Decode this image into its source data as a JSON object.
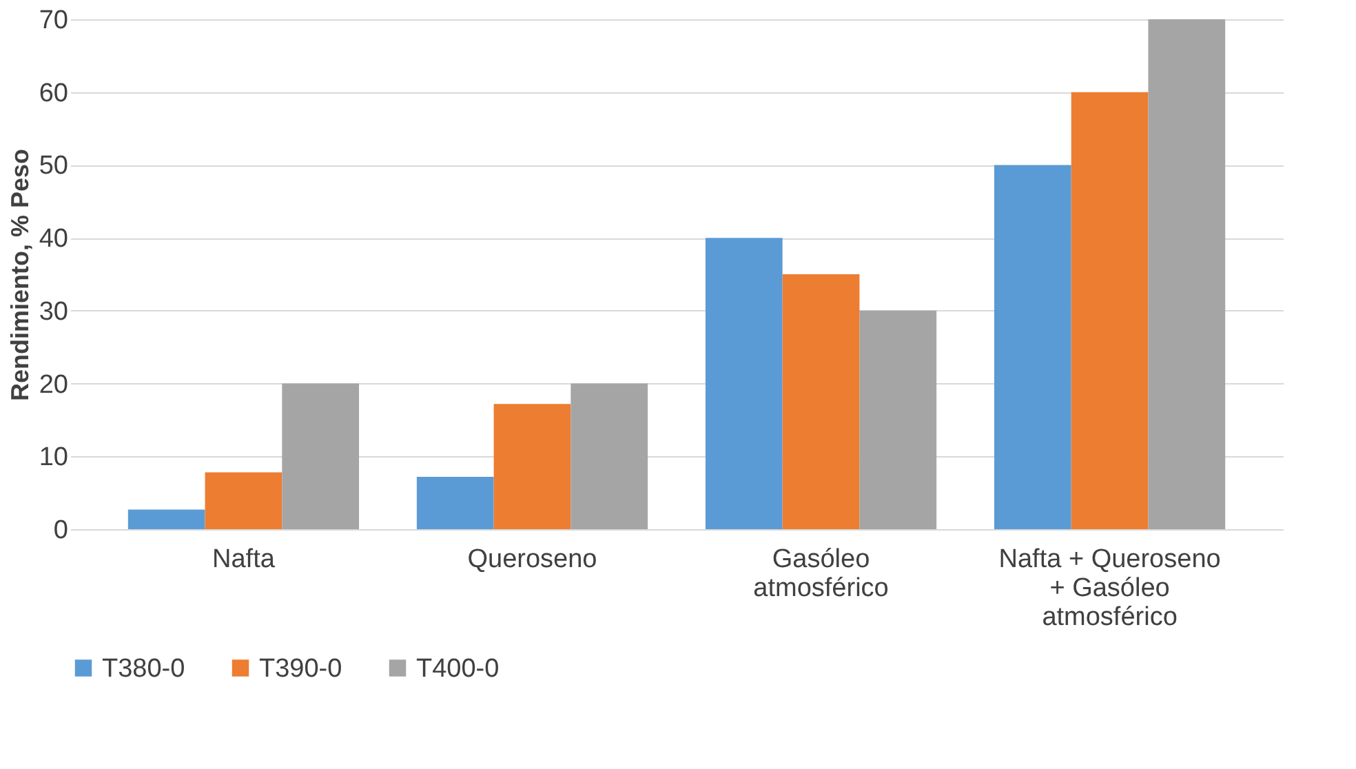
{
  "chart_data": {
    "type": "bar",
    "ylabel": "Rendimiento, % Peso",
    "categories": [
      "Nafta",
      "Queroseno",
      "Gasóleo atmosférico",
      "Nafta + Queroseno + Gasóleo atmosférico"
    ],
    "series": [
      {
        "name": "T380-0",
        "color": "#5b9bd5",
        "values": [
          2.7,
          7.2,
          40,
          50
        ]
      },
      {
        "name": "T390-0",
        "color": "#ed7d31",
        "values": [
          7.8,
          17.2,
          35,
          60
        ]
      },
      {
        "name": "T400-0",
        "color": "#a5a5a5",
        "values": [
          20,
          20,
          30,
          70
        ]
      }
    ],
    "ylim": [
      0,
      70
    ],
    "yticks": [
      0,
      10,
      20,
      30,
      40,
      50,
      60,
      70
    ],
    "grid": "y",
    "legend": "bottom"
  }
}
